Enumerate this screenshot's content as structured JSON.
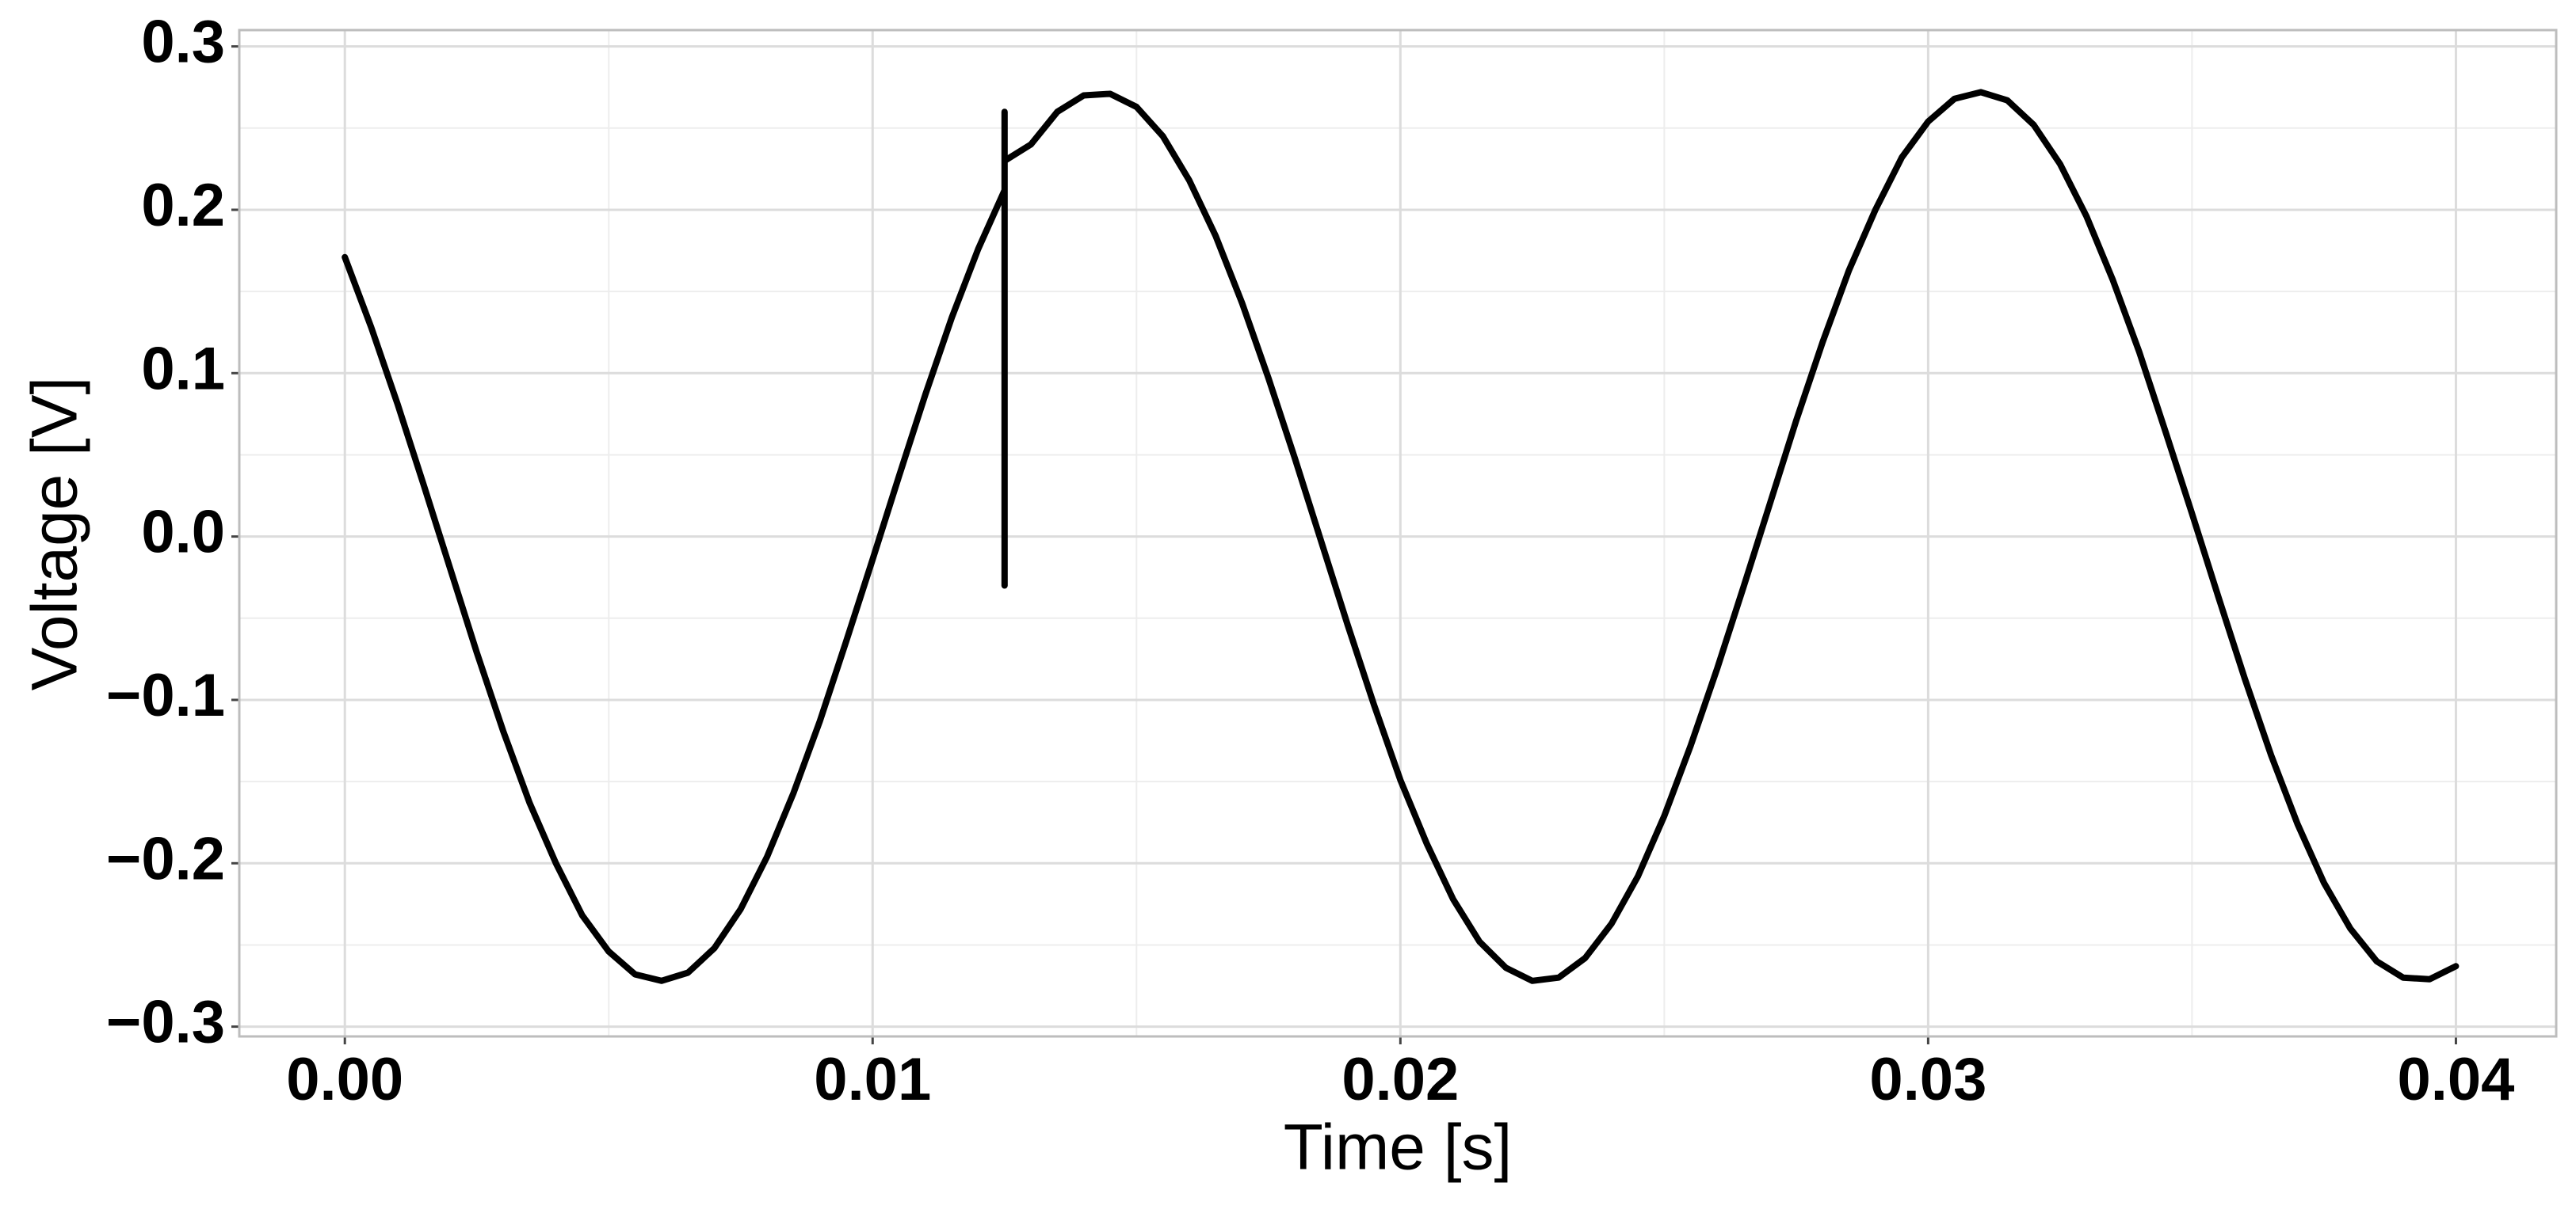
{
  "chart_data": {
    "type": "line",
    "xlabel": "Time [s]",
    "ylabel": "Voltage [V]",
    "x": [
      0,
      0.0005,
      0.001,
      0.0015,
      0.002,
      0.0025,
      0.003,
      0.0035,
      0.004,
      0.0045,
      0.005,
      0.0055,
      0.006,
      0.0065,
      0.007,
      0.0075,
      0.008,
      0.0085,
      0.009,
      0.0095,
      0.01,
      0.0105,
      0.011,
      0.0115,
      0.012,
      0.0125,
      0.0125,
      0.0125,
      0.0125,
      0.013,
      0.0135,
      0.014,
      0.0145,
      0.015,
      0.0155,
      0.016,
      0.0165,
      0.017,
      0.0175,
      0.018,
      0.0185,
      0.019,
      0.0195,
      0.02,
      0.0205,
      0.021,
      0.0215,
      0.022,
      0.0225,
      0.023,
      0.0235,
      0.024,
      0.0245,
      0.025,
      0.0255,
      0.026,
      0.0265,
      0.027,
      0.0275,
      0.028,
      0.0285,
      0.029,
      0.0295,
      0.03,
      0.0305,
      0.031,
      0.0315,
      0.032,
      0.0325,
      0.033,
      0.0335,
      0.034,
      0.0345,
      0.035,
      0.0355,
      0.036,
      0.0365,
      0.037,
      0.0375,
      0.038,
      0.0385,
      0.039,
      0.0395,
      0.04
    ],
    "values": [
      0.171,
      0.128,
      0.081,
      0.031,
      -0.02,
      -0.071,
      -0.119,
      -0.163,
      -0.2,
      -0.232,
      -0.254,
      -0.268,
      -0.272,
      -0.267,
      -0.252,
      -0.228,
      -0.196,
      -0.157,
      -0.113,
      -0.064,
      -0.014,
      0.037,
      0.087,
      0.134,
      0.176,
      0.212,
      0.26,
      -0.03,
      0.23,
      0.24,
      0.26,
      0.27,
      0.271,
      0.263,
      0.245,
      0.218,
      0.184,
      0.143,
      0.097,
      0.048,
      -0.003,
      -0.054,
      -0.103,
      -0.149,
      -0.188,
      -0.222,
      -0.248,
      -0.264,
      -0.272,
      -0.27,
      -0.258,
      -0.237,
      -0.208,
      -0.171,
      -0.128,
      -0.081,
      -0.031,
      0.02,
      0.071,
      0.119,
      0.163,
      0.2,
      0.232,
      0.254,
      0.268,
      0.272,
      0.267,
      0.252,
      0.228,
      0.196,
      0.157,
      0.113,
      0.064,
      0.014,
      -0.037,
      -0.087,
      -0.134,
      -0.176,
      -0.212,
      -0.24,
      -0.26,
      -0.27,
      -0.271,
      -0.263
    ],
    "color": "#000000",
    "xlim": [
      -0.002,
      0.0419
    ],
    "ylim": [
      -0.306,
      0.31
    ],
    "xticks": [
      {
        "value": 0,
        "label": "0.00"
      },
      {
        "value": 0.01,
        "label": "0.01"
      },
      {
        "value": 0.02,
        "label": "0.02"
      },
      {
        "value": 0.03,
        "label": "0.03"
      },
      {
        "value": 0.04,
        "label": "0.04"
      }
    ],
    "yticks": [
      {
        "value": -0.3,
        "label": "−0.3"
      },
      {
        "value": -0.2,
        "label": "−0.2"
      },
      {
        "value": -0.1,
        "label": "−0.1"
      },
      {
        "value": 0,
        "label": "0.0"
      },
      0.1,
      0.2,
      0.3
    ],
    "x_minor_grid": [
      0.005,
      0.015,
      0.025,
      0.035
    ],
    "y_minor_grid": [
      -0.25,
      -0.15,
      -0.05,
      0.05,
      0.15,
      0.25
    ],
    "grid": true
  }
}
